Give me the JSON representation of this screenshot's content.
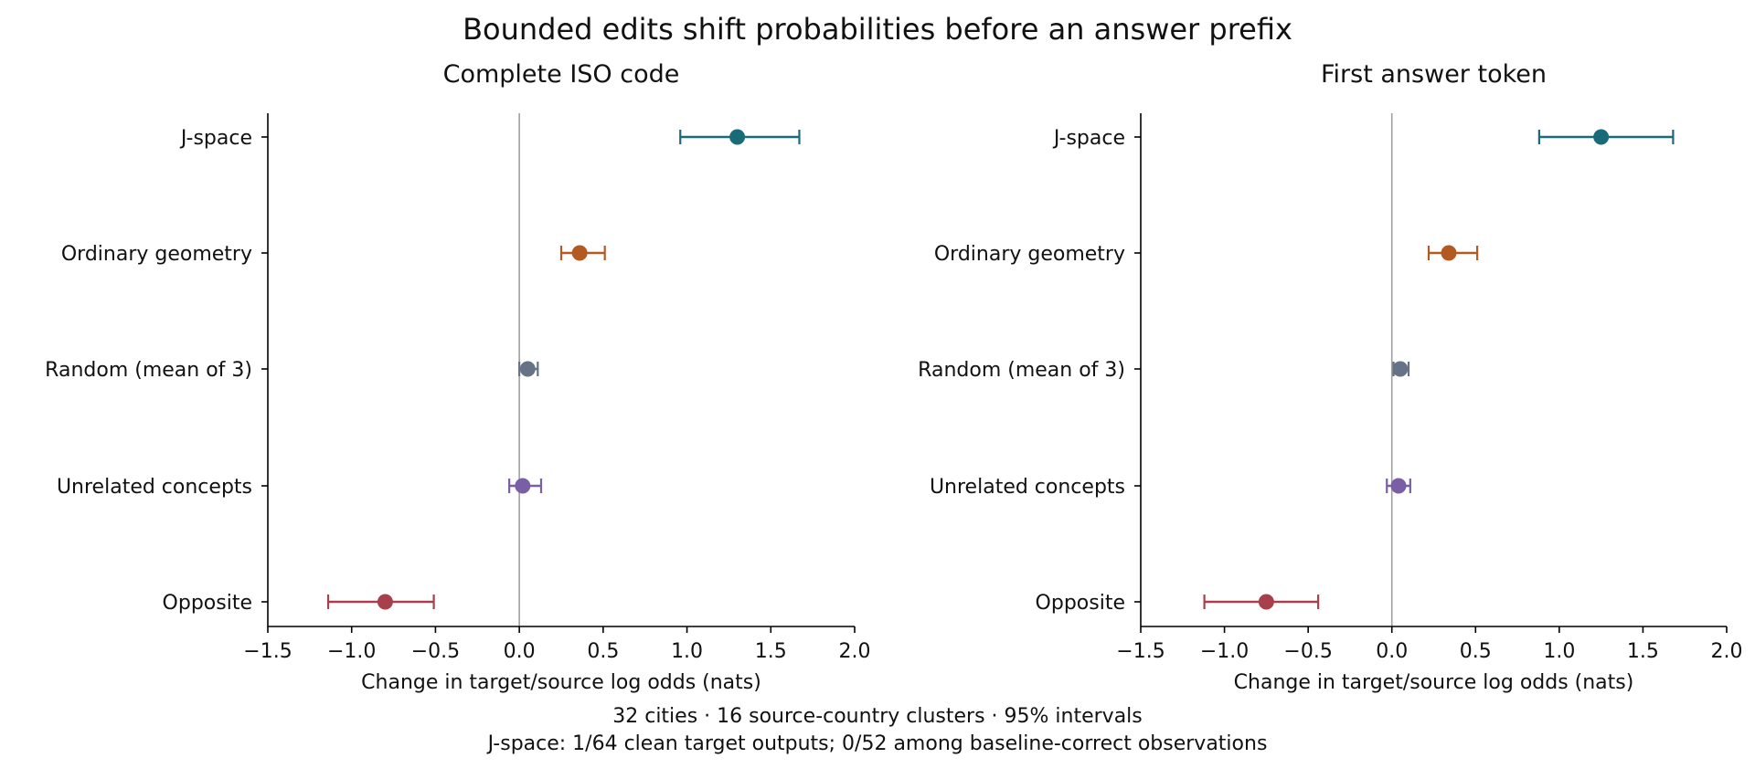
{
  "figure": {
    "title": "Bounded edits shift probabilities before an answer prefix",
    "caption_lines": [
      "32 cities · 16 source-country clusters · 95% intervals",
      "J-space: 1/64 clean target outputs; 0/52 among baseline-correct observations"
    ]
  },
  "colors": {
    "J-space": "#1a6b7a",
    "Ordinary geometry": "#b35a22",
    "Random (mean of 3)": "#667285",
    "Unrelated concepts": "#7b5fa6",
    "Opposite": "#a7404a",
    "reference_line": "#a0a0a0",
    "axis": "#000000"
  },
  "chart_data": [
    {
      "type": "scatter",
      "title": "Complete ISO code",
      "xlabel": "Change in target/source log odds (nats)",
      "xlim": [
        -1.5,
        2.0
      ],
      "xticks": [
        -1.5,
        -1.0,
        -0.5,
        0.0,
        0.5,
        1.0,
        1.5,
        2.0
      ],
      "xtick_labels": [
        "−1.5",
        "−1.0",
        "−0.5",
        "0.0",
        "0.5",
        "1.0",
        "1.5",
        "2.0"
      ],
      "reference_x": 0.0,
      "categories": [
        "J-space",
        "Ordinary geometry",
        "Random (mean of 3)",
        "Unrelated concepts",
        "Opposite"
      ],
      "estimate": [
        1.3,
        0.36,
        0.05,
        0.02,
        -0.8
      ],
      "ci_low": [
        0.96,
        0.25,
        0.0,
        -0.06,
        -1.14
      ],
      "ci_high": [
        1.67,
        0.51,
        0.11,
        0.13,
        -0.51
      ]
    },
    {
      "type": "scatter",
      "title": "First answer token",
      "xlabel": "Change in target/source log odds (nats)",
      "xlim": [
        -1.5,
        2.0
      ],
      "xticks": [
        -1.5,
        -1.0,
        -0.5,
        0.0,
        0.5,
        1.0,
        1.5,
        2.0
      ],
      "xtick_labels": [
        "−1.5",
        "−1.0",
        "−0.5",
        "0.0",
        "0.5",
        "1.0",
        "1.5",
        "2.0"
      ],
      "reference_x": 0.0,
      "categories": [
        "J-space",
        "Ordinary geometry",
        "Random (mean of 3)",
        "Unrelated concepts",
        "Opposite"
      ],
      "estimate": [
        1.25,
        0.34,
        0.05,
        0.04,
        -0.75
      ],
      "ci_low": [
        0.88,
        0.22,
        0.01,
        -0.03,
        -1.12
      ],
      "ci_high": [
        1.68,
        0.51,
        0.1,
        0.11,
        -0.44
      ]
    }
  ]
}
